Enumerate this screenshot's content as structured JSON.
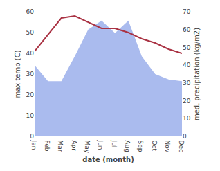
{
  "chart_data": {
    "type": "line",
    "categories": [
      "Jan",
      "Feb",
      "Mar",
      "Apr",
      "May",
      "Jun",
      "Jul",
      "Aug",
      "Sep",
      "Oct",
      "Nov",
      "Dec"
    ],
    "series": [
      {
        "type": "area",
        "axis": "y2",
        "color": "#aabbee",
        "values": [
          40,
          31,
          31,
          45,
          60,
          65,
          58,
          65,
          45,
          35,
          32,
          31
        ]
      },
      {
        "type": "line",
        "color": "#aa3344",
        "values": [
          41,
          49,
          57,
          58,
          55,
          52,
          52,
          50,
          47,
          45,
          42,
          40
        ]
      }
    ],
    "xlabel": "date (month)",
    "ylabel": "max temp (C)",
    "y2label": "med. precipitation (kg/m2)",
    "ylim": [
      0,
      60
    ],
    "yticks": [
      0,
      10,
      20,
      30,
      40,
      50,
      60
    ],
    "y2lim": [
      0,
      70
    ],
    "y2ticks": [
      0,
      10,
      20,
      30,
      40,
      50,
      60,
      70
    ],
    "grid": false
  }
}
